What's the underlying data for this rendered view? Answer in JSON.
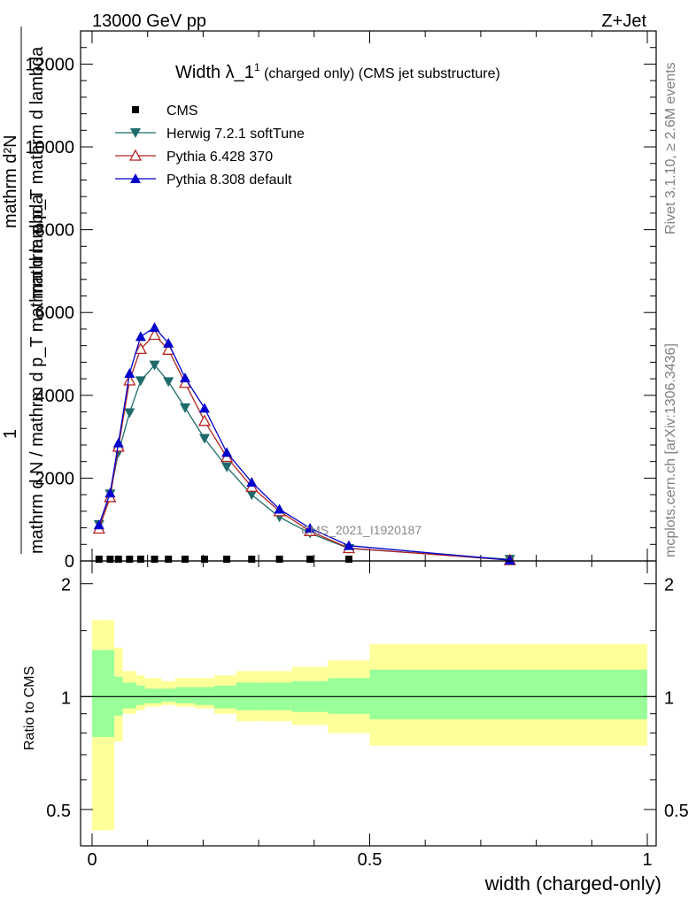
{
  "header": {
    "left": "13000 GeV pp",
    "right": "Z+Jet"
  },
  "side_labels": {
    "rivet": "Rivet 3.1.10, ≥ 2.6M events",
    "mcplots": "mcplots.cern.ch [arXiv:1306.3436]"
  },
  "chart_data": [
    {
      "type": "line",
      "title_main": "Width λ_1",
      "title_sup": "1",
      "title_rest": " (charged only) (CMS jet substructure)",
      "ylabel": {
        "numerator_line1": "mathrm d²N",
        "numerator_line2": "mathrm d p_T mathrm d lambda",
        "sub_T": "T",
        "fraction_one": "1",
        "denominator": "mathrm d N / mathrm d p_T mathrm d lambda"
      },
      "watermark": "CMS_2021_I1920187",
      "ylim": [
        0,
        12800
      ],
      "xlim": [
        -0.01,
        1.0
      ],
      "yticks": [
        "0",
        "2000",
        "4000",
        "6000",
        "8000",
        "10000",
        "12000"
      ],
      "legend_position": "top-left",
      "x": [
        0.0125,
        0.0325,
        0.0475,
        0.0675,
        0.0875,
        0.1125,
        0.1375,
        0.1675,
        0.2025,
        0.2425,
        0.2875,
        0.3375,
        0.3925,
        0.4625,
        0.7525
      ],
      "series": [
        {
          "name": "CMS",
          "marker": "square",
          "color": "#000000",
          "values": [
            0,
            0,
            0,
            0,
            0,
            0,
            0,
            0,
            0,
            0,
            0,
            0,
            0,
            0,
            0
          ]
        },
        {
          "name": "Herwig 7.2.1 softTune",
          "marker": "triangle-down",
          "color": "#1f6b6b",
          "values": [
            880,
            1620,
            2620,
            3580,
            4350,
            4730,
            4330,
            3700,
            2960,
            2270,
            1600,
            1060,
            670,
            300,
            40
          ]
        },
        {
          "name": "Pythia 6.428 370",
          "marker": "triangle-open",
          "color": "#b22222",
          "values": [
            780,
            1540,
            2760,
            4360,
            5120,
            5460,
            5100,
            4300,
            3380,
            2510,
            1790,
            1200,
            720,
            310,
            20
          ]
        },
        {
          "name": "Pythia 8.308 default",
          "marker": "triangle-up",
          "color": "#0000cc",
          "values": [
            870,
            1640,
            2850,
            4530,
            5420,
            5640,
            5260,
            4420,
            3690,
            2620,
            1900,
            1250,
            790,
            370,
            20
          ]
        }
      ]
    },
    {
      "type": "area",
      "ylabel": "Ratio to CMS",
      "xlabel": "width (charged-only)",
      "ylim": [
        0.4,
        2.3
      ],
      "yticks": [
        "0.5",
        "1",
        "2"
      ],
      "xticks": [
        "0",
        "0.5",
        "1"
      ],
      "bin_edges": [
        0,
        0.025,
        0.04,
        0.055,
        0.08,
        0.095,
        0.125,
        0.15,
        0.185,
        0.22,
        0.26,
        0.305,
        0.36,
        0.425,
        0.5,
        1.0
      ],
      "bands": [
        {
          "name": "yellow",
          "color": "#ffff99",
          "upper": [
            1.6,
            1.6,
            1.35,
            1.17,
            1.14,
            1.12,
            1.1,
            1.12,
            1.12,
            1.14,
            1.17,
            1.17,
            1.2,
            1.25,
            1.38,
            1.38
          ],
          "lower": [
            0.44,
            0.44,
            0.76,
            0.9,
            0.92,
            0.94,
            0.95,
            0.94,
            0.93,
            0.9,
            0.86,
            0.86,
            0.84,
            0.8,
            0.74,
            0.74
          ]
        },
        {
          "name": "green",
          "color": "#99ff99",
          "upper": [
            1.33,
            1.33,
            1.13,
            1.09,
            1.07,
            1.05,
            1.05,
            1.06,
            1.06,
            1.07,
            1.09,
            1.09,
            1.1,
            1.12,
            1.18,
            1.18
          ],
          "lower": [
            0.78,
            0.78,
            0.89,
            0.93,
            0.95,
            0.96,
            0.97,
            0.96,
            0.95,
            0.93,
            0.92,
            0.92,
            0.91,
            0.9,
            0.87,
            0.87
          ]
        }
      ],
      "reference_line": 1.0
    }
  ]
}
